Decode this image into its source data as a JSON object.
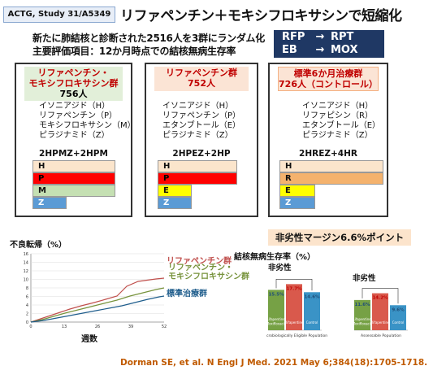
{
  "header": {
    "study_tag": "ACTG, Study 31/A5349",
    "title": "リファペンチン＋モキシフロキサシンで短縮化"
  },
  "description": {
    "line1": "新たに肺結核と診断された2516人を3群にランダム化",
    "line2": "主要評価項目：12か月時点での結核無病生存率"
  },
  "abbreviations": [
    {
      "from": "RFP",
      "arrow": "→",
      "to": "RPT"
    },
    {
      "from": "EB",
      "arrow": "→",
      "to": "MOX"
    }
  ],
  "arms": [
    {
      "name": "リファペンチン・\nモキシフロキサシン群",
      "count": "756人",
      "drugs": [
        "イソニアジド（H）",
        "リファペンチン（P）",
        "モキシフロキサシン（M）",
        "ピラジナミド（Z）"
      ],
      "regimen": "2HPMZ+2HPM",
      "bars": [
        "H",
        "P",
        "M",
        "Z"
      ]
    },
    {
      "name": "リファペンチン群",
      "count": "752人",
      "drugs": [
        "イソニアジド（H）",
        "リファペンチン（P）",
        "エタンブトール（E）",
        "ピラジナミド（Z）"
      ],
      "regimen": "2HPEZ+2HP",
      "bars": [
        "H",
        "P",
        "E",
        "Z"
      ]
    },
    {
      "name": "標準6か月治療群",
      "count": "726人（コントロール）",
      "drugs": [
        "イソニアジド（H）",
        "リファピシン（R）",
        "エタンブトール（E）",
        "ピラジナミド（Z）"
      ],
      "regimen": "2HREZ+4HR",
      "bars": [
        "H",
        "R",
        "E",
        "Z"
      ]
    }
  ],
  "km_plot": {
    "ylabel": "不良転帰（%）",
    "xlabel": "週数",
    "yticks": [
      "0",
      "2",
      "4",
      "6",
      "8",
      "10",
      "12",
      "14",
      "16"
    ],
    "xticks": [
      "0",
      "13",
      "26",
      "39",
      "52"
    ],
    "series_labels": [
      "リファペンチン群",
      "リファペンチン・\nモキシフロキサシン群",
      "標準治療群"
    ]
  },
  "margin_banner": "非劣性マージン6.6%ポイント",
  "chart_data": {
    "type": "bar",
    "title": "結核無病生存率（%）",
    "noninferiority_labels": [
      "非劣性",
      "非劣性"
    ],
    "groups": [
      {
        "name": "Microbiologically Eligible Population",
        "categories": [
          "Rifapentine-Moxifloxacin",
          "Rifapentine",
          "Control"
        ],
        "values": [
          15.5,
          17.7,
          14.6
        ],
        "labels": [
          "15.5%",
          "17.7%",
          "14.6%"
        ]
      },
      {
        "name": "Assessable Population",
        "categories": [
          "Rifapentine-Moxifloxacin",
          "Rifapentine",
          "Control"
        ],
        "values": [
          11.6,
          14.2,
          9.6
        ],
        "labels": [
          "11.6%",
          "14.2%",
          "9.6%"
        ]
      }
    ],
    "colors": [
      "#76a145",
      "#d9594c",
      "#3a93c6"
    ]
  },
  "citation": "Dorman SE, et al. N Engl J Med. 2021 May 6;384(18):1705-1718."
}
